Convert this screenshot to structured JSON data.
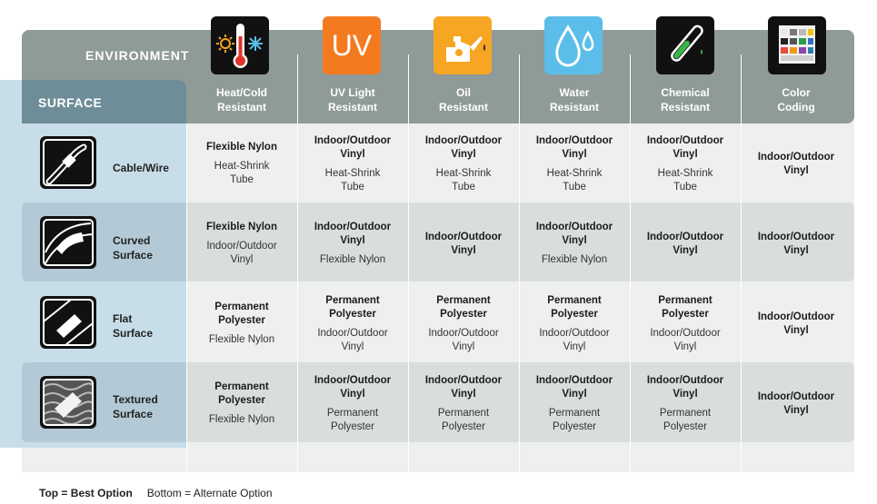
{
  "header": {
    "environment_label": "ENVIRONMENT",
    "surface_label": "SURFACE"
  },
  "environments": [
    {
      "label_line1": "Heat/Cold",
      "label_line2": "Resistant",
      "icon": "thermometer-icon",
      "color": "#111111"
    },
    {
      "label_line1": "UV Light",
      "label_line2": "Resistant",
      "icon": "uv-icon",
      "color": "#f47a20"
    },
    {
      "label_line1": "Oil",
      "label_line2": "Resistant",
      "icon": "oil-can-icon",
      "color": "#f6a623"
    },
    {
      "label_line1": "Water",
      "label_line2": "Resistant",
      "icon": "water-drop-icon",
      "color": "#5bbde9"
    },
    {
      "label_line1": "Chemical",
      "label_line2": "Resistant",
      "icon": "test-tube-icon",
      "color": "#111111"
    },
    {
      "label_line1": "Color",
      "label_line2": "Coding",
      "icon": "color-grid-icon",
      "color": "#111111"
    }
  ],
  "uv_text": "UV",
  "surfaces": [
    {
      "line1": "Cable/Wire",
      "line2": "",
      "icon": "cable-wire-icon"
    },
    {
      "line1": "Curved",
      "line2": "Surface",
      "icon": "curved-surface-icon"
    },
    {
      "line1": "Flat",
      "line2": "Surface",
      "icon": "flat-surface-icon"
    },
    {
      "line1": "Textured",
      "line2": "Surface",
      "icon": "textured-surface-icon"
    }
  ],
  "rows": [
    [
      {
        "best": "Flexible Nylon",
        "alt": "Heat-Shrink Tube"
      },
      {
        "best": "Indoor/Outdoor Vinyl",
        "alt": "Heat-Shrink Tube"
      },
      {
        "best": "Indoor/Outdoor Vinyl",
        "alt": "Heat-Shrink Tube"
      },
      {
        "best": "Indoor/Outdoor Vinyl",
        "alt": "Heat-Shrink Tube"
      },
      {
        "best": "Indoor/Outdoor Vinyl",
        "alt": "Heat-Shrink Tube"
      },
      {
        "best": "Indoor/Outdoor Vinyl",
        "alt": ""
      }
    ],
    [
      {
        "best": "Flexible Nylon",
        "alt": "Indoor/Outdoor Vinyl"
      },
      {
        "best": "Indoor/Outdoor Vinyl",
        "alt": "Flexible Nylon"
      },
      {
        "best": "Indoor/Outdoor Vinyl",
        "alt": ""
      },
      {
        "best": "Indoor/Outdoor Vinyl",
        "alt": "Flexible Nylon"
      },
      {
        "best": "Indoor/Outdoor Vinyl",
        "alt": ""
      },
      {
        "best": "Indoor/Outdoor Vinyl",
        "alt": ""
      }
    ],
    [
      {
        "best": "Permanent Polyester",
        "alt": "Flexible Nylon"
      },
      {
        "best": "Permanent Polyester",
        "alt": "Indoor/Outdoor Vinyl"
      },
      {
        "best": "Permanent Polyester",
        "alt": "Indoor/Outdoor Vinyl"
      },
      {
        "best": "Permanent Polyester",
        "alt": "Indoor/Outdoor Vinyl"
      },
      {
        "best": "Permanent Polyester",
        "alt": "Indoor/Outdoor Vinyl"
      },
      {
        "best": "Indoor/Outdoor Vinyl",
        "alt": ""
      }
    ],
    [
      {
        "best": "Permanent Polyester",
        "alt": "Flexible Nylon"
      },
      {
        "best": "Indoor/Outdoor Vinyl",
        "alt": "Permanent Polyester"
      },
      {
        "best": "Indoor/Outdoor Vinyl",
        "alt": "Permanent Polyester"
      },
      {
        "best": "Indoor/Outdoor Vinyl",
        "alt": "Permanent Polyester"
      },
      {
        "best": "Indoor/Outdoor Vinyl",
        "alt": "Permanent Polyester"
      },
      {
        "best": "Indoor/Outdoor Vinyl",
        "alt": ""
      }
    ]
  ],
  "footer": {
    "top_label": "Top = Best Option",
    "bottom_label": "Bottom = Alternate Option"
  }
}
